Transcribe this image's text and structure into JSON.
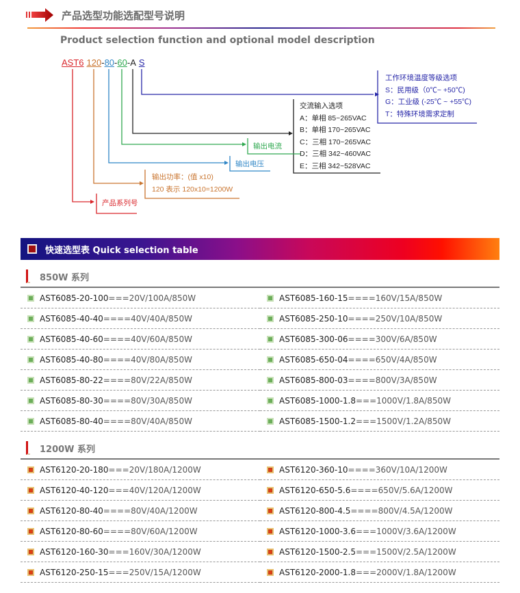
{
  "header": {
    "title_cn": "产品选型功能选配型号说明",
    "title_en": "Product selection function and optional model description"
  },
  "model_code": {
    "parts": [
      "AST6",
      "120",
      "80",
      "60",
      "A",
      "S"
    ],
    "separator": "-"
  },
  "diagram": {
    "series_label": "产品系列号",
    "power": [
      "输出功率：(值 x10)",
      "120 表示 120x10=1200W"
    ],
    "voltage_label": "输出电压",
    "current_label": "输出电流",
    "ac_input": [
      "交流输入选项",
      "A：单相 85~265VAC",
      "B：单相 170~265VAC",
      "C：三相 170~265VAC",
      "D：三相 342~460VAC",
      "E：三相 342~528VAC"
    ],
    "temp": [
      "工作环境温度等级选项",
      "S：民用级（0℃~ +50℃)",
      "G：工业级 (-25℃ ~ +55℃)",
      "T：特殊环境需求定制"
    ],
    "colors": {
      "series": "#d9262b",
      "power": "#c9742e",
      "voltage": "#2f86c6",
      "current": "#2ea84f",
      "ac": "#222222",
      "temp": "#2626a8"
    }
  },
  "quick_table": {
    "title": "快速选型表  Quick selection table",
    "groups": [
      {
        "name": "850W 系列",
        "icon": "green-square-icon",
        "left": [
          [
            "AST6085-20-100",
            "===20V/100A/850W"
          ],
          [
            "AST6085-40-40",
            "====40V/40A/850W"
          ],
          [
            "AST6085-40-60",
            "====40V/60A/850W"
          ],
          [
            "AST6085-40-80",
            "====40V/80A/850W"
          ],
          [
            "AST6085-80-22",
            "====80V/22A/850W"
          ],
          [
            "AST6085-80-30",
            "====80V/30A/850W"
          ],
          [
            "AST6085-80-40",
            "====80V/40A/850W"
          ]
        ],
        "right": [
          [
            "AST6085-160-15",
            "====160V/15A/850W"
          ],
          [
            "AST6085-250-10",
            "====250V/10A/850W"
          ],
          [
            "AST6085-300-06",
            "====300V/6A/850W"
          ],
          [
            "AST6085-650-04",
            "====650V/4A/850W"
          ],
          [
            "AST6085-800-03",
            "====800V/3A/850W"
          ],
          [
            "AST6085-1000-1.8",
            "===1000V/1.8A/850W"
          ],
          [
            "AST6085-1500-1.2",
            "===1500V/1.2A/850W"
          ]
        ]
      },
      {
        "name": "1200W 系列",
        "icon": "orange-square-icon",
        "left": [
          [
            "AST6120-20-180",
            "===20V/180A/1200W"
          ],
          [
            "AST6120-40-120",
            "===40V/120A/1200W"
          ],
          [
            "AST6120-80-40",
            "====80V/40A/1200W"
          ],
          [
            "AST6120-80-60",
            "====80V/60A/1200W"
          ],
          [
            "AST6120-160-30",
            "===160V/30A/1200W"
          ],
          [
            "AST6120-250-15",
            "===250V/15A/1200W"
          ]
        ],
        "right": [
          [
            "AST6120-360-10",
            "====360V/10A/1200W"
          ],
          [
            "AST6120-650-5.6",
            "====650V/5.6A/1200W"
          ],
          [
            "AST6120-800-4.5",
            "====800V/4.5A/1200W"
          ],
          [
            "AST6120-1000-3.6",
            "===1000V/3.6A/1200W"
          ],
          [
            "AST6120-1500-2.5",
            "===1500V/2.5A/1200W"
          ],
          [
            "AST6120-2000-1.8",
            "===2000V/1.8A/1200W"
          ]
        ]
      }
    ]
  }
}
